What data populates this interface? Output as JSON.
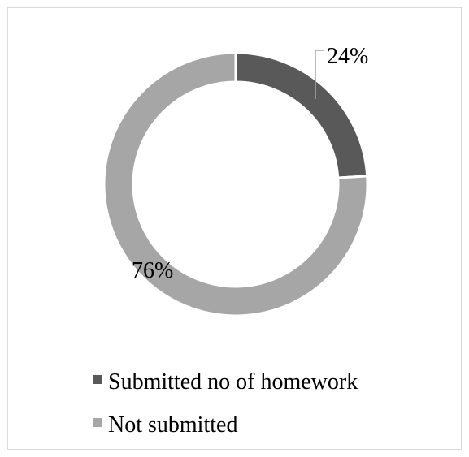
{
  "chart_data": {
    "type": "pie",
    "subtype": "doughnut",
    "title": "",
    "slices": [
      {
        "name": "Submitted no of homework",
        "value": 24,
        "label": "24%",
        "color": "#595959"
      },
      {
        "name": "Not submitted",
        "value": 76,
        "label": "76%",
        "color": "#a6a6a6"
      }
    ],
    "legend_placement": "bottom"
  }
}
